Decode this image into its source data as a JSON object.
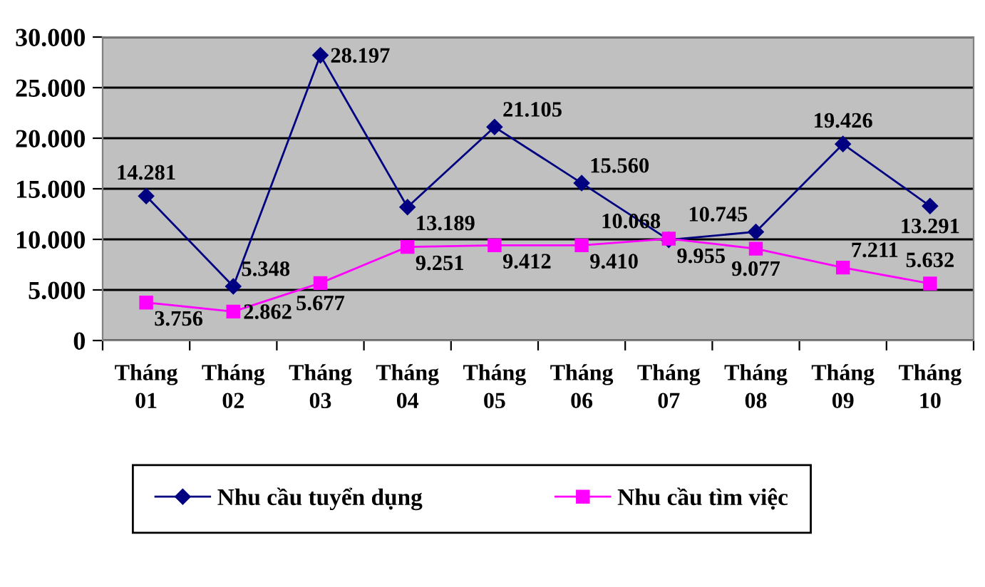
{
  "chart_data": {
    "type": "line",
    "categories": [
      "Tháng\n01",
      "Tháng\n02",
      "Tháng\n03",
      "Tháng\n04",
      "Tháng\n05",
      "Tháng\n06",
      "Tháng\n07",
      "Tháng\n08",
      "Tháng\n09",
      "Tháng\n10"
    ],
    "series": [
      {
        "name": "Nhu cầu tuyển dụng",
        "color": "#000080",
        "marker": "diamond",
        "values": [
          14281,
          5348,
          28197,
          13189,
          21105,
          15560,
          9955,
          10745,
          19426,
          13291
        ],
        "value_labels": [
          "14.281",
          "5.348",
          "28.197",
          "13.189",
          "21.105",
          "15.560",
          "9.955",
          "10.745",
          "19.426",
          "13.291"
        ]
      },
      {
        "name": "Nhu cầu tìm việc",
        "color": "#ff00ff",
        "marker": "square",
        "values": [
          3756,
          2862,
          5677,
          9251,
          9412,
          9410,
          10068,
          9077,
          7211,
          5632
        ],
        "value_labels": [
          "3.756",
          "2.862",
          "5.677",
          "9.251",
          "9.412",
          "9.410",
          "10.068",
          "9.077",
          "7.211",
          "5.632"
        ]
      }
    ],
    "ylim": [
      0,
      30000
    ],
    "yticks": [
      0,
      {
        "value": 5000,
        "label": "5.000"
      },
      {
        "value": 10000,
        "label": "10.000"
      },
      {
        "value": 15000,
        "label": "15.000"
      },
      {
        "value": 20000,
        "label": "20.000"
      },
      {
        "value": 25000,
        "label": "25.000"
      },
      {
        "value": 30000,
        "label": "30.000"
      }
    ],
    "grid": "y",
    "legend": "bottom",
    "line_style": "solid"
  }
}
